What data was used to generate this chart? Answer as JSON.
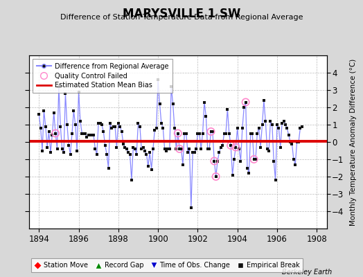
{
  "title": "MARYSVILLE 1 SW",
  "subtitle": "Difference of Station Temperature Data from Regional Average",
  "ylabel": "Monthly Temperature Anomaly Difference (°C)",
  "xlabel_bottom": "Berkeley Earth",
  "xlim": [
    1893.5,
    1908.5
  ],
  "ylim": [
    -5,
    5
  ],
  "yticks": [
    -4,
    -3,
    -2,
    -1,
    0,
    1,
    2,
    3,
    4
  ],
  "xticks": [
    1894,
    1896,
    1898,
    1900,
    1902,
    1904,
    1906,
    1908
  ],
  "bias_value": 0.05,
  "background_color": "#d8d8d8",
  "plot_bg_color": "#ffffff",
  "line_color": "#8888ff",
  "dot_color": "#111111",
  "bias_color": "#dd0000",
  "qc_color": "#ff88cc",
  "data": [
    1.6,
    0.8,
    -0.5,
    1.8,
    0.9,
    -0.3,
    0.6,
    -0.6,
    0.4,
    1.7,
    0.5,
    -0.4,
    3.2,
    0.9,
    -0.4,
    -0.6,
    2.8,
    1.0,
    -0.2,
    -0.7,
    0.5,
    1.8,
    1.0,
    -0.5,
    2.9,
    1.2,
    0.5,
    0.5,
    0.5,
    0.3,
    0.4,
    0.4,
    0.4,
    0.4,
    -0.4,
    -0.7,
    1.1,
    1.1,
    1.0,
    0.6,
    -0.2,
    -0.7,
    -1.5,
    1.1,
    0.8,
    0.9,
    0.9,
    -0.3,
    1.1,
    0.9,
    0.6,
    -0.1,
    -0.3,
    -0.4,
    -0.6,
    -0.7,
    -2.2,
    -0.3,
    -0.4,
    -0.7,
    1.1,
    0.9,
    -0.4,
    -0.3,
    -0.5,
    -0.7,
    -1.4,
    -0.6,
    -1.6,
    -0.4,
    0.7,
    0.8,
    3.6,
    2.2,
    1.1,
    0.8,
    -0.4,
    -0.5,
    -0.4,
    -0.4,
    3.2,
    2.2,
    0.8,
    -0.4,
    0.5,
    -0.4,
    -0.4,
    -1.3,
    0.5,
    0.5,
    -0.6,
    -0.4,
    -3.8,
    -0.6,
    -0.6,
    -0.4,
    0.5,
    0.5,
    -0.4,
    0.5,
    2.3,
    1.5,
    -0.4,
    -0.4,
    0.6,
    0.6,
    -1.1,
    -2.0,
    -1.1,
    -0.6,
    -0.3,
    -0.2,
    0.5,
    0.5,
    1.9,
    0.5,
    -0.2,
    -1.9,
    -1.0,
    -0.3,
    0.8,
    -0.4,
    -1.1,
    0.8,
    2.0,
    2.3,
    -1.5,
    -1.8,
    0.5,
    0.5,
    -1.0,
    -1.0,
    0.5,
    0.8,
    -0.3,
    1.0,
    2.4,
    1.2,
    -0.4,
    -0.5,
    1.2,
    1.0,
    -1.1,
    -2.2,
    1.0,
    0.8,
    -0.3,
    1.1,
    1.2,
    1.0,
    0.8,
    0.4,
    0.0,
    -0.1,
    -1.0,
    -1.3,
    0.0,
    0.0,
    0.8,
    0.9
  ],
  "qc_indices": [
    10,
    84,
    85,
    104,
    106,
    107,
    116,
    119,
    125,
    130
  ],
  "start_year": 1894,
  "months_per_year": 12
}
